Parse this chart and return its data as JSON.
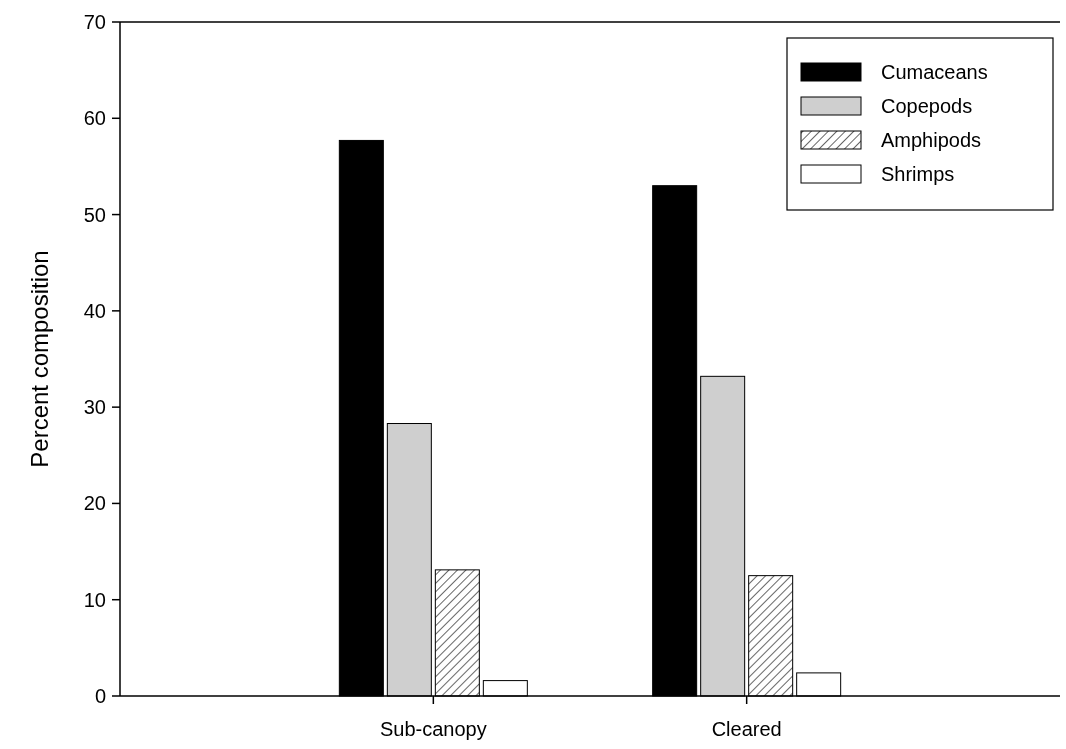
{
  "chart_data": {
    "type": "bar",
    "ylabel": "Percent composition",
    "categories": [
      "Sub-canopy",
      "Cleared"
    ],
    "series": [
      {
        "name": "Cumaceans",
        "color": "#000000",
        "values": [
          57.7,
          53.0
        ]
      },
      {
        "name": "Copepods",
        "color": "#cfcfcf",
        "values": [
          28.3,
          33.2
        ]
      },
      {
        "name": "Amphipods",
        "color": "#000000",
        "values": [
          13.1,
          12.5
        ]
      },
      {
        "name": "Shrimps",
        "color": "#ffffff",
        "values": [
          1.6,
          2.4
        ]
      }
    ],
    "ylim": [
      0,
      70
    ],
    "yticks": [
      0,
      10,
      20,
      30,
      40,
      50,
      60,
      70
    ],
    "legend": "top right"
  }
}
